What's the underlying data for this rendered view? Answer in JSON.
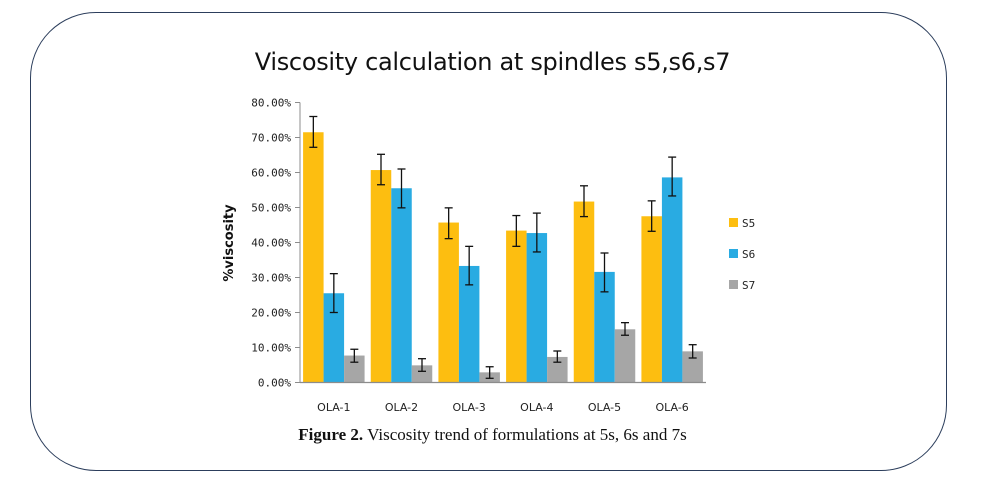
{
  "figure": {
    "caption_label": "Figure 2.",
    "caption_text": " Viscosity trend of formulations at 5s, 6s and 7s"
  },
  "chart_data": {
    "type": "bar",
    "title": "Viscosity calculation at spindles s5,s6,s7",
    "xlabel": "",
    "ylabel": "%viscosity",
    "ylim": [
      0,
      80
    ],
    "y_ticks": [
      "0.00%",
      "10.00%",
      "20.00%",
      "30.00%",
      "40.00%",
      "50.00%",
      "60.00%",
      "70.00%",
      "80.00%"
    ],
    "categories": [
      "OLA-1",
      "OLA-2",
      "OLA-3",
      "OLA-4",
      "OLA-5",
      "OLA-6"
    ],
    "legend_position": "right",
    "grid": false,
    "series": [
      {
        "name": "S5",
        "color": "#fdbe10",
        "values": [
          71.5,
          60.7,
          45.7,
          43.4,
          51.7,
          47.5
        ],
        "error_low": [
          67.2,
          56.5,
          41.1,
          38.9,
          47.4,
          43.2
        ],
        "error_high": [
          76.0,
          65.2,
          49.9,
          47.7,
          56.2,
          51.9
        ]
      },
      {
        "name": "S6",
        "color": "#29abe2",
        "values": [
          25.5,
          55.5,
          33.3,
          42.7,
          31.6,
          58.6
        ],
        "error_low": [
          20.0,
          49.9,
          27.9,
          37.3,
          25.9,
          53.3
        ],
        "error_high": [
          31.1,
          61.0,
          38.9,
          48.4,
          37.0,
          64.4
        ]
      },
      {
        "name": "S7",
        "color": "#a6a6a6",
        "values": [
          7.7,
          4.9,
          2.9,
          7.3,
          15.2,
          8.9
        ],
        "error_low": [
          5.8,
          3.2,
          1.2,
          5.8,
          13.5,
          7.0
        ],
        "error_high": [
          9.5,
          6.8,
          4.5,
          9.0,
          17.1,
          10.8
        ]
      }
    ]
  }
}
